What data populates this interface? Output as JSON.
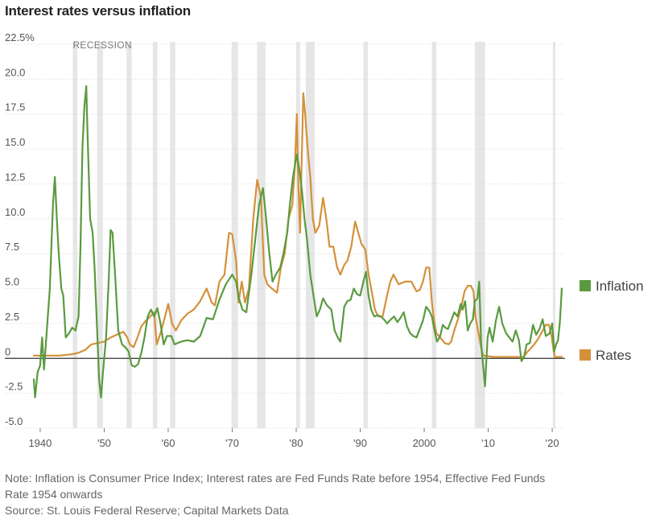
{
  "title": "Interest rates versus inflation",
  "notes": [
    "Note: Inflation is Consumer Price Index; Interest rates are Fed Funds Rate before 1954, Effective Fed Funds",
    "Rate 1954 onwards"
  ],
  "source": "Source: St. Louis Federal Reserve; Capital Markets Data",
  "chart_data": {
    "type": "line",
    "xlim": [
      1938.5,
      2022
    ],
    "ylim": [
      -5,
      22.5
    ],
    "y_ticks": [
      {
        "v": 22.5,
        "label": "22.5%"
      },
      {
        "v": 20,
        "label": "20.0"
      },
      {
        "v": 17.5,
        "label": "17.5"
      },
      {
        "v": 15,
        "label": "15.0"
      },
      {
        "v": 12.5,
        "label": "12.5"
      },
      {
        "v": 10,
        "label": "10.0"
      },
      {
        "v": 7.5,
        "label": "7.5"
      },
      {
        "v": 5,
        "label": "5.0"
      },
      {
        "v": 2.5,
        "label": "2.5"
      },
      {
        "v": 0,
        "label": "0"
      },
      {
        "v": -2.5,
        "label": "-2.5"
      },
      {
        "v": -5,
        "label": "-5.0"
      }
    ],
    "x_ticks": [
      {
        "v": 1940,
        "label": "1940"
      },
      {
        "v": 1950,
        "label": "'50"
      },
      {
        "v": 1960,
        "label": "'60"
      },
      {
        "v": 1970,
        "label": "'70"
      },
      {
        "v": 1980,
        "label": "'80"
      },
      {
        "v": 1990,
        "label": "'90"
      },
      {
        "v": 2000,
        "label": "2000"
      },
      {
        "v": 2010,
        "label": "'10"
      },
      {
        "v": 2020,
        "label": "'20"
      }
    ],
    "recession_label": "RECESSION",
    "recessions": [
      [
        1945.1,
        1945.8
      ],
      [
        1948.9,
        1949.8
      ],
      [
        1953.5,
        1954.3
      ],
      [
        1957.6,
        1958.3
      ],
      [
        1960.3,
        1961.1
      ],
      [
        1969.9,
        1970.9
      ],
      [
        1973.9,
        1975.2
      ],
      [
        1980.0,
        1980.6
      ],
      [
        1981.5,
        1982.9
      ],
      [
        1990.5,
        1991.2
      ],
      [
        2001.2,
        2001.9
      ],
      [
        2007.9,
        2009.5
      ],
      [
        2020.1,
        2020.5
      ]
    ],
    "legend_position": "right",
    "series": [
      {
        "name": "Inflation",
        "color": "#5a9a3f",
        "x": [
          1939.0,
          1939.2,
          1939.6,
          1940.0,
          1940.3,
          1940.6,
          1941.0,
          1941.5,
          1942.0,
          1942.3,
          1942.6,
          1942.9,
          1943.3,
          1943.6,
          1944.0,
          1944.5,
          1945.0,
          1945.5,
          1946.0,
          1946.3,
          1946.6,
          1946.9,
          1947.2,
          1947.4,
          1947.8,
          1948.2,
          1948.5,
          1948.9,
          1949.2,
          1949.5,
          1949.8,
          1950.3,
          1950.7,
          1951.0,
          1951.3,
          1951.7,
          1952.2,
          1952.8,
          1953.3,
          1953.8,
          1954.3,
          1954.8,
          1955.3,
          1955.8,
          1956.3,
          1956.8,
          1957.3,
          1957.8,
          1958.3,
          1958.8,
          1959.3,
          1959.8,
          1960.5,
          1961.0,
          1962.0,
          1963.0,
          1964.0,
          1965.0,
          1966.0,
          1967.0,
          1968.0,
          1969.0,
          1970.0,
          1970.6,
          1971.0,
          1971.6,
          1972.2,
          1973.0,
          1973.6,
          1974.2,
          1974.8,
          1975.2,
          1975.8,
          1976.3,
          1976.8,
          1977.5,
          1978.0,
          1978.6,
          1979.0,
          1979.5,
          1980.1,
          1980.5,
          1980.9,
          1981.3,
          1981.7,
          1982.2,
          1982.8,
          1983.2,
          1983.7,
          1984.2,
          1984.8,
          1985.5,
          1986.0,
          1986.5,
          1986.9,
          1987.5,
          1988.0,
          1988.5,
          1989.0,
          1989.5,
          1990.0,
          1990.5,
          1990.9,
          1991.3,
          1991.7,
          1992.2,
          1992.7,
          1993.2,
          1993.7,
          1994.2,
          1994.8,
          1995.3,
          1995.8,
          1996.3,
          1996.8,
          1997.3,
          1997.8,
          1998.3,
          1998.8,
          1999.3,
          1999.8,
          2000.3,
          2000.8,
          2001.2,
          2001.6,
          2002.0,
          2002.5,
          2002.9,
          2003.3,
          2003.7,
          2004.2,
          2004.7,
          2005.2,
          2005.7,
          2006.0,
          2006.4,
          2006.8,
          2007.2,
          2007.6,
          2007.9,
          2008.3,
          2008.6,
          2008.9,
          2009.2,
          2009.5,
          2009.9,
          2010.2,
          2010.7,
          2011.2,
          2011.7,
          2012.2,
          2012.8,
          2013.3,
          2013.8,
          2014.3,
          2014.8,
          2015.2,
          2015.6,
          2016.0,
          2016.5,
          2017.0,
          2017.5,
          2018.0,
          2018.5,
          2019.0,
          2019.6,
          2020.0,
          2020.3,
          2020.6,
          2020.9,
          2021.2,
          2021.5
        ],
        "y": [
          -1.5,
          -2.8,
          -1.0,
          -0.5,
          1.5,
          -0.8,
          1.8,
          5.0,
          11.0,
          13.0,
          10.0,
          7.5,
          5.0,
          4.5,
          1.5,
          1.8,
          2.2,
          2.0,
          3.0,
          8.0,
          15.0,
          18.0,
          19.5,
          16.0,
          10.0,
          9.0,
          6.5,
          2.0,
          -1.5,
          -2.8,
          -1.0,
          1.5,
          5.5,
          9.2,
          9.0,
          6.0,
          2.0,
          1.0,
          0.8,
          0.5,
          -0.5,
          -0.6,
          -0.4,
          0.4,
          1.5,
          3.0,
          3.5,
          3.0,
          3.6,
          2.5,
          1.0,
          1.6,
          1.6,
          1.0,
          1.2,
          1.3,
          1.2,
          1.6,
          2.9,
          2.8,
          4.2,
          5.3,
          6.0,
          5.5,
          4.4,
          3.5,
          3.3,
          6.0,
          8.5,
          11.0,
          12.2,
          10.5,
          7.5,
          5.5,
          6.0,
          6.5,
          7.5,
          9.0,
          11.0,
          13.0,
          14.6,
          13.5,
          12.0,
          10.0,
          8.5,
          6.0,
          4.2,
          3.0,
          3.5,
          4.3,
          3.8,
          3.5,
          2.0,
          1.5,
          1.2,
          3.7,
          4.1,
          4.2,
          5.0,
          4.6,
          4.5,
          5.5,
          6.2,
          4.5,
          3.5,
          3.0,
          3.1,
          3.0,
          2.8,
          2.5,
          2.8,
          3.0,
          2.6,
          2.9,
          3.3,
          2.3,
          1.8,
          1.6,
          1.5,
          2.1,
          2.7,
          3.7,
          3.4,
          3.0,
          2.0,
          1.2,
          1.6,
          2.4,
          2.2,
          2.1,
          2.7,
          3.3,
          3.0,
          3.9,
          3.5,
          4.1,
          2.0,
          2.5,
          2.8,
          4.1,
          4.3,
          5.5,
          1.0,
          -0.5,
          -2.0,
          1.5,
          2.2,
          1.2,
          2.7,
          3.7,
          2.5,
          1.8,
          1.5,
          1.2,
          2.0,
          1.3,
          -0.2,
          0.1,
          1.0,
          1.1,
          2.4,
          1.7,
          2.1,
          2.8,
          1.6,
          1.8,
          2.5,
          0.5,
          1.0,
          1.3,
          2.6,
          5.0
        ]
      },
      {
        "name": "Rates",
        "color": "#d4913a",
        "x": [
          1939.0,
          1941.0,
          1943.0,
          1945.0,
          1946.0,
          1947.0,
          1948.0,
          1949.0,
          1950.0,
          1951.0,
          1952.0,
          1953.0,
          1953.6,
          1954.0,
          1954.6,
          1955.2,
          1955.8,
          1956.5,
          1957.2,
          1957.8,
          1958.2,
          1958.8,
          1959.5,
          1960.0,
          1960.6,
          1961.2,
          1962.0,
          1963.0,
          1964.0,
          1965.0,
          1966.0,
          1966.8,
          1967.3,
          1968.0,
          1968.8,
          1969.5,
          1970.0,
          1970.6,
          1971.0,
          1971.5,
          1972.0,
          1972.6,
          1973.3,
          1973.9,
          1974.5,
          1975.0,
          1975.5,
          1976.2,
          1977.0,
          1977.6,
          1978.2,
          1978.8,
          1979.4,
          1979.8,
          1980.1,
          1980.3,
          1980.6,
          1980.9,
          1981.1,
          1981.4,
          1981.8,
          1982.2,
          1982.6,
          1983.0,
          1983.6,
          1984.2,
          1984.7,
          1985.2,
          1985.8,
          1986.4,
          1986.9,
          1987.5,
          1988.0,
          1988.6,
          1989.2,
          1989.7,
          1990.2,
          1990.8,
          1991.3,
          1991.8,
          1992.3,
          1992.8,
          1993.5,
          1994.2,
          1994.7,
          1995.2,
          1996.0,
          1997.0,
          1998.0,
          1998.8,
          1999.3,
          1999.8,
          2000.3,
          2000.8,
          2001.2,
          2001.6,
          2001.9,
          2002.5,
          2003.2,
          2003.8,
          2004.2,
          2004.7,
          2005.2,
          2005.7,
          2006.3,
          2006.8,
          2007.3,
          2007.7,
          2008.0,
          2008.4,
          2008.8,
          2009.2,
          2011.0,
          2013.0,
          2015.5,
          2016.0,
          2016.6,
          2017.2,
          2017.8,
          2018.4,
          2019.0,
          2019.5,
          2019.9,
          2020.2,
          2020.4,
          2021.0,
          2021.5
        ],
        "y": [
          0.2,
          0.2,
          0.2,
          0.3,
          0.4,
          0.6,
          1.0,
          1.1,
          1.2,
          1.5,
          1.7,
          1.9,
          1.5,
          1.0,
          0.8,
          1.5,
          2.3,
          2.7,
          3.0,
          3.3,
          1.0,
          1.8,
          3.0,
          3.9,
          2.5,
          2.0,
          2.7,
          3.2,
          3.5,
          4.1,
          5.0,
          4.0,
          3.8,
          5.5,
          6.0,
          9.0,
          8.9,
          7.0,
          4.0,
          5.5,
          4.0,
          5.0,
          10.0,
          12.8,
          11.5,
          6.0,
          5.3,
          5.0,
          4.7,
          6.5,
          7.5,
          10.0,
          11.0,
          13.8,
          17.5,
          13.0,
          9.0,
          15.0,
          19.0,
          17.5,
          15.0,
          13.0,
          10.0,
          9.0,
          9.5,
          11.5,
          10.0,
          8.0,
          8.0,
          6.5,
          6.0,
          6.7,
          7.0,
          8.0,
          9.8,
          9.0,
          8.2,
          7.8,
          6.0,
          4.8,
          3.5,
          3.0,
          3.0,
          4.5,
          5.5,
          6.0,
          5.3,
          5.5,
          5.5,
          4.8,
          4.9,
          5.5,
          6.5,
          6.5,
          4.0,
          2.5,
          1.8,
          1.5,
          1.1,
          1.0,
          1.2,
          2.0,
          2.7,
          3.5,
          4.8,
          5.2,
          5.2,
          4.8,
          3.0,
          2.0,
          1.0,
          0.2,
          0.1,
          0.1,
          0.1,
          0.4,
          0.7,
          1.0,
          1.4,
          1.9,
          2.4,
          2.4,
          1.6,
          0.6,
          0.1,
          0.1,
          0.1
        ]
      }
    ]
  }
}
